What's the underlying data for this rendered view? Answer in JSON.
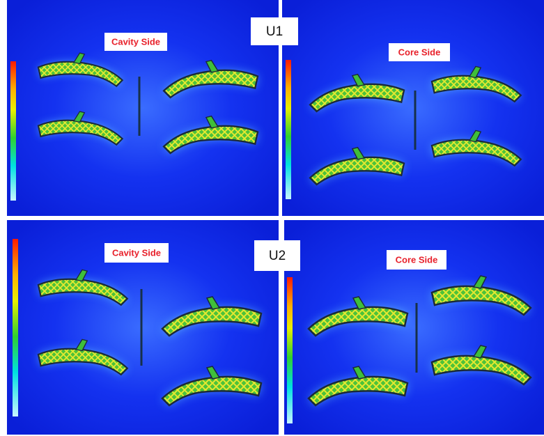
{
  "panels": [
    {
      "label": "Cavity Side"
    },
    {
      "label": "Core Side"
    },
    {
      "label": "Cavity Side"
    },
    {
      "label": "Core Side"
    }
  ],
  "tags": [
    "U1",
    "U2"
  ]
}
